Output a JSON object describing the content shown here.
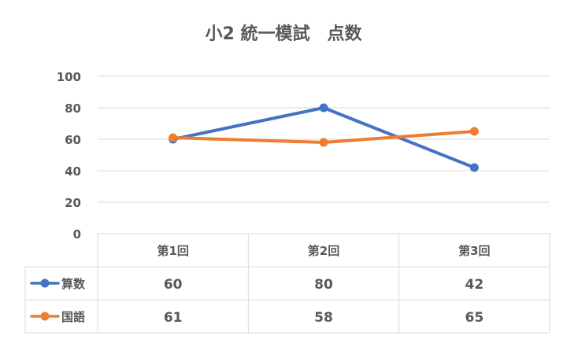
{
  "chart_data": {
    "type": "line",
    "title": "小2 統一模試　点数",
    "categories": [
      "第1回",
      "第2回",
      "第3回"
    ],
    "series": [
      {
        "name": "算数",
        "values": [
          60,
          80,
          42
        ],
        "color": "#4472C4"
      },
      {
        "name": "国語",
        "values": [
          61,
          58,
          65
        ],
        "color": "#ED7D31"
      }
    ],
    "yticks": [
      0,
      20,
      40,
      60,
      80,
      100
    ],
    "ylim": [
      0,
      100
    ],
    "grid": true,
    "data_table": true,
    "gridline_color": "#D9D9D9",
    "text_color": "#595959"
  }
}
